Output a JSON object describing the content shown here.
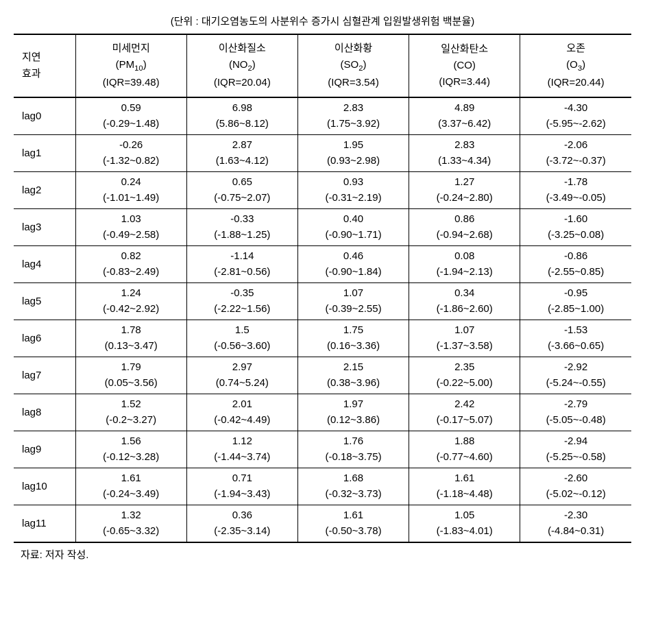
{
  "unit_label": "(단위 : 대기오염농도의 사분위수 증가시 심혈관계 입원발생위험 백분율)",
  "header": {
    "lag": "지연\n효과",
    "columns": [
      {
        "name": "미세먼지",
        "formula": "(PM₁₀)",
        "iqr": "(IQR=39.48)"
      },
      {
        "name": "이산화질소",
        "formula": "(NO₂)",
        "iqr": "(IQR=20.04)"
      },
      {
        "name": "이산화황",
        "formula": "(SO₂)",
        "iqr": "(IQR=3.54)"
      },
      {
        "name": "일산화탄소",
        "formula": "(CO)",
        "iqr": "(IQR=3.44)"
      },
      {
        "name": "오존",
        "formula": "(O₃)",
        "iqr": "(IQR=20.44)"
      }
    ]
  },
  "rows": [
    {
      "lag": "lag0",
      "cells": [
        {
          "v": "0.59",
          "r": "(-0.29~1.48)"
        },
        {
          "v": "6.98",
          "r": "(5.86~8.12)"
        },
        {
          "v": "2.83",
          "r": "(1.75~3.92)"
        },
        {
          "v": "4.89",
          "r": "(3.37~6.42)"
        },
        {
          "v": "-4.30",
          "r": "(-5.95~-2.62)"
        }
      ]
    },
    {
      "lag": "lag1",
      "cells": [
        {
          "v": "-0.26",
          "r": "(-1.32~0.82)"
        },
        {
          "v": "2.87",
          "r": "(1.63~4.12)"
        },
        {
          "v": "1.95",
          "r": "(0.93~2.98)"
        },
        {
          "v": "2.83",
          "r": "(1.33~4.34)"
        },
        {
          "v": "-2.06",
          "r": "(-3.72~-0.37)"
        }
      ]
    },
    {
      "lag": "lag2",
      "cells": [
        {
          "v": "0.24",
          "r": "(-1.01~1.49)"
        },
        {
          "v": "0.65",
          "r": "(-0.75~2.07)"
        },
        {
          "v": "0.93",
          "r": "(-0.31~2.19)"
        },
        {
          "v": "1.27",
          "r": "(-0.24~2.80)"
        },
        {
          "v": "-1.78",
          "r": "(-3.49~-0.05)"
        }
      ]
    },
    {
      "lag": "lag3",
      "cells": [
        {
          "v": "1.03",
          "r": "(-0.49~2.58)"
        },
        {
          "v": "-0.33",
          "r": "(-1.88~1.25)"
        },
        {
          "v": "0.40",
          "r": "(-0.90~1.71)"
        },
        {
          "v": "0.86",
          "r": "(-0.94~2.68)"
        },
        {
          "v": "-1.60",
          "r": "(-3.25~0.08)"
        }
      ]
    },
    {
      "lag": "lag4",
      "cells": [
        {
          "v": "0.82",
          "r": "(-0.83~2.49)"
        },
        {
          "v": "-1.14",
          "r": "(-2.81~0.56)"
        },
        {
          "v": "0.46",
          "r": "(-0.90~1.84)"
        },
        {
          "v": "0.08",
          "r": "(-1.94~2.13)"
        },
        {
          "v": "-0.86",
          "r": "(-2.55~0.85)"
        }
      ]
    },
    {
      "lag": "lag5",
      "cells": [
        {
          "v": "1.24",
          "r": "(-0.42~2.92)"
        },
        {
          "v": "-0.35",
          "r": "(-2.22~1.56)"
        },
        {
          "v": "1.07",
          "r": "(-0.39~2.55)"
        },
        {
          "v": "0.34",
          "r": "(-1.86~2.60)"
        },
        {
          "v": "-0.95",
          "r": "(-2.85~1.00)"
        }
      ]
    },
    {
      "lag": "lag6",
      "cells": [
        {
          "v": "1.78",
          "r": "(0.13~3.47)"
        },
        {
          "v": "1.5",
          "r": "(-0.56~3.60)"
        },
        {
          "v": "1.75",
          "r": "(0.16~3.36)"
        },
        {
          "v": "1.07",
          "r": "(-1.37~3.58)"
        },
        {
          "v": "-1.53",
          "r": "(-3.66~0.65)"
        }
      ]
    },
    {
      "lag": "lag7",
      "cells": [
        {
          "v": "1.79",
          "r": "(0.05~3.56)"
        },
        {
          "v": "2.97",
          "r": "(0.74~5.24)"
        },
        {
          "v": "2.15",
          "r": "(0.38~3.96)"
        },
        {
          "v": "2.35",
          "r": "(-0.22~5.00)"
        },
        {
          "v": "-2.92",
          "r": "(-5.24~-0.55)"
        }
      ]
    },
    {
      "lag": "lag8",
      "cells": [
        {
          "v": "1.52",
          "r": "(-0.2~3.27)"
        },
        {
          "v": "2.01",
          "r": "(-0.42~4.49)"
        },
        {
          "v": "1.97",
          "r": "(0.12~3.86)"
        },
        {
          "v": "2.42",
          "r": "(-0.17~5.07)"
        },
        {
          "v": "-2.79",
          "r": "(-5.05~-0.48)"
        }
      ]
    },
    {
      "lag": "lag9",
      "cells": [
        {
          "v": "1.56",
          "r": "(-0.12~3.28)"
        },
        {
          "v": "1.12",
          "r": "(-1.44~3.74)"
        },
        {
          "v": "1.76",
          "r": "(-0.18~3.75)"
        },
        {
          "v": "1.88",
          "r": "(-0.77~4.60)"
        },
        {
          "v": "-2.94",
          "r": "(-5.25~-0.58)"
        }
      ]
    },
    {
      "lag": "lag10",
      "cells": [
        {
          "v": "1.61",
          "r": "(-0.24~3.49)"
        },
        {
          "v": "0.71",
          "r": "(-1.94~3.43)"
        },
        {
          "v": "1.68",
          "r": "(-0.32~3.73)"
        },
        {
          "v": "1.61",
          "r": "(-1.18~4.48)"
        },
        {
          "v": "-2.60",
          "r": "(-5.02~-0.12)"
        }
      ]
    },
    {
      "lag": "lag11",
      "cells": [
        {
          "v": "1.32",
          "r": "(-0.65~3.32)"
        },
        {
          "v": "0.36",
          "r": "(-2.35~3.14)"
        },
        {
          "v": "1.61",
          "r": "(-0.50~3.78)"
        },
        {
          "v": "1.05",
          "r": "(-1.83~4.01)"
        },
        {
          "v": "-2.30",
          "r": "(-4.84~0.31)"
        }
      ]
    }
  ],
  "footer": "자료: 저자 작성.",
  "style": {
    "font_size": 15,
    "text_color": "#000000",
    "background_color": "#ffffff",
    "border_color": "#000000",
    "table_border_width_thick": 2,
    "table_border_width_thin": 1
  }
}
